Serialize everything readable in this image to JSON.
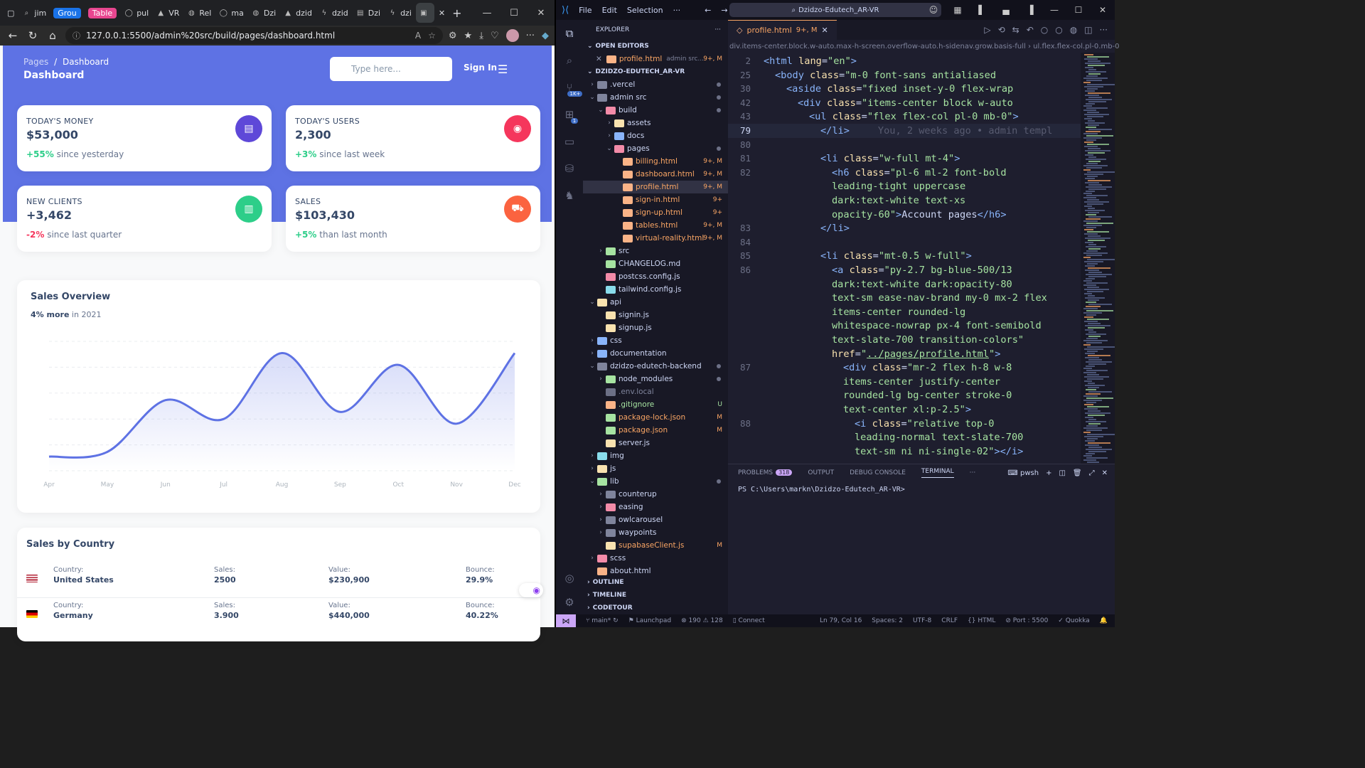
{
  "browser": {
    "tabs": [
      {
        "icon": "search",
        "label": "jim"
      },
      {
        "icon": "group",
        "label": "Grou",
        "pill_color": "#1a73e8"
      },
      {
        "icon": "group",
        "label": "Table",
        "pill_color": "#e8468f"
      },
      {
        "icon": "github",
        "label": "pul"
      },
      {
        "icon": "vercel",
        "label": "VR"
      },
      {
        "icon": "globe",
        "label": "Rel"
      },
      {
        "icon": "github",
        "label": "ma"
      },
      {
        "icon": "globe",
        "label": "Dzi"
      },
      {
        "icon": "vercel",
        "label": "dzid"
      },
      {
        "icon": "supabase",
        "label": "dzid"
      },
      {
        "icon": "doc",
        "label": "Dzi"
      },
      {
        "icon": "supabase",
        "label": "dzi"
      },
      {
        "icon": "page",
        "label": "",
        "active": true
      }
    ],
    "url": "127.0.0.1:5500/admin%20src/build/pages/dashboard.html"
  },
  "dashboard": {
    "breadcrumb_parent": "Pages",
    "breadcrumb_sep": "/",
    "breadcrumb_current": "Dashboard",
    "title": "Dashboard",
    "search_placeholder": "Type here...",
    "sign_in": "Sign In",
    "stats": [
      {
        "label": "TODAY'S MONEY",
        "value": "$53,000",
        "change": "+55%",
        "change_color": "#2dce89",
        "note": "since yesterday",
        "icon": "money-icon",
        "icon_color": "#5e48d8"
      },
      {
        "label": "TODAY'S USERS",
        "value": "2,300",
        "change": "+3%",
        "change_color": "#2dce89",
        "note": "since last week",
        "icon": "globe-icon",
        "icon_color": "#f5365c"
      },
      {
        "label": "NEW CLIENTS",
        "value": "+3,462",
        "change": "-2%",
        "change_color": "#f5365c",
        "note": "since last quarter",
        "icon": "paper-icon",
        "icon_color": "#2dce89"
      },
      {
        "label": "SALES",
        "value": "$103,430",
        "change": "+5%",
        "change_color": "#2dce89",
        "note": "than last month",
        "icon": "cart-icon",
        "icon_color": "#fb6340"
      }
    ],
    "sales_overview": {
      "title": "Sales Overview",
      "sub_bold": "4% more",
      "sub_rest": "in 2021"
    },
    "sales_by_country": {
      "title": "Sales by Country",
      "headers": {
        "country": "Country:",
        "sales": "Sales:",
        "value": "Value:",
        "bounce": "Bounce:"
      },
      "rows": [
        {
          "flag": "us-flag",
          "country": "United States",
          "sales": "2500",
          "value": "$230,900",
          "bounce": "29.9%"
        },
        {
          "flag": "de-flag",
          "country": "Germany",
          "sales": "3.900",
          "value": "$440,000",
          "bounce": "40.22%"
        }
      ]
    }
  },
  "chart_data": {
    "type": "line",
    "title": "Sales Overview",
    "categories": [
      "Apr",
      "May",
      "Jun",
      "Jul",
      "Aug",
      "Sep",
      "Oct",
      "Nov",
      "Dec"
    ],
    "series": [
      {
        "values": [
          60,
          80,
          300,
          220,
          500,
          250,
          450,
          200,
          500
        ]
      }
    ],
    "ylim": [
      0,
      550
    ],
    "grid": true,
    "line_color": "#5e72e4"
  },
  "vscode": {
    "menu": [
      "File",
      "Edit",
      "Selection",
      "···"
    ],
    "search": "Dzidzo-Edutech_AR-VR",
    "explorer_title": "EXPLORER",
    "open_editors": "OPEN EDITORS",
    "open_file": {
      "name": "profile.html",
      "path": "admin src...",
      "status": "9+, M"
    },
    "project": "DZIDZO-EDUTECH_AR-VR",
    "tree": [
      {
        "d": 0,
        "chev": "›",
        "icon": "#7f849c",
        "name": ".vercel",
        "dot": true
      },
      {
        "d": 0,
        "chev": "⌄",
        "icon": "#7f849c",
        "name": "admin src",
        "dot": true
      },
      {
        "d": 1,
        "chev": "⌄",
        "icon": "#f38ba8",
        "name": "build",
        "dot": true
      },
      {
        "d": 2,
        "chev": "›",
        "icon": "#f9e2af",
        "name": "assets"
      },
      {
        "d": 2,
        "chev": "›",
        "icon": "#89b4fa",
        "name": "docs"
      },
      {
        "d": 2,
        "chev": "⌄",
        "icon": "#f38ba8",
        "name": "pages",
        "dot": true
      },
      {
        "d": 3,
        "chev": "",
        "icon": "#fab387",
        "name": "billing.html",
        "st": "9+, M",
        "cls": "mod"
      },
      {
        "d": 3,
        "chev": "",
        "icon": "#fab387",
        "name": "dashboard.html",
        "st": "9+, M",
        "cls": "mod"
      },
      {
        "d": 3,
        "chev": "",
        "icon": "#fab387",
        "name": "profile.html",
        "st": "9+, M",
        "cls": "mod",
        "sel": true
      },
      {
        "d": 3,
        "chev": "",
        "icon": "#fab387",
        "name": "sign-in.html",
        "st": "9+",
        "cls": "mod"
      },
      {
        "d": 3,
        "chev": "",
        "icon": "#fab387",
        "name": "sign-up.html",
        "st": "9+",
        "cls": "mod"
      },
      {
        "d": 3,
        "chev": "",
        "icon": "#fab387",
        "name": "tables.html",
        "st": "9+, M",
        "cls": "mod"
      },
      {
        "d": 3,
        "chev": "",
        "icon": "#fab387",
        "name": "virtual-reality.html",
        "st": "9+, M",
        "cls": "mod"
      },
      {
        "d": 1,
        "chev": "›",
        "icon": "#a6e3a1",
        "name": "src"
      },
      {
        "d": 1,
        "chev": "",
        "icon": "#a6e3a1",
        "name": "CHANGELOG.md"
      },
      {
        "d": 1,
        "chev": "",
        "icon": "#f38ba8",
        "name": "postcss.config.js"
      },
      {
        "d": 1,
        "chev": "",
        "icon": "#89dceb",
        "name": "tailwind.config.js"
      },
      {
        "d": 0,
        "chev": "⌄",
        "icon": "#f9e2af",
        "name": "api"
      },
      {
        "d": 1,
        "chev": "",
        "icon": "#f9e2af",
        "name": "signin.js"
      },
      {
        "d": 1,
        "chev": "",
        "icon": "#f9e2af",
        "name": "signup.js"
      },
      {
        "d": 0,
        "chev": "›",
        "icon": "#89b4fa",
        "name": "css"
      },
      {
        "d": 0,
        "chev": "›",
        "icon": "#89b4fa",
        "name": "documentation"
      },
      {
        "d": 0,
        "chev": "⌄",
        "icon": "#7f849c",
        "name": "dzidzo-edutech-backend",
        "dot": true
      },
      {
        "d": 1,
        "chev": "›",
        "icon": "#a6e3a1",
        "name": "node_modules",
        "dot": true
      },
      {
        "d": 1,
        "chev": "",
        "icon": "#6c7086",
        "name": ".env.local",
        "cls": "dim"
      },
      {
        "d": 1,
        "chev": "",
        "icon": "#fab387",
        "name": ".gitignore",
        "st": "U",
        "cls": "untr"
      },
      {
        "d": 1,
        "chev": "",
        "icon": "#a6e3a1",
        "name": "package-lock.json",
        "st": "M",
        "cls": "mod"
      },
      {
        "d": 1,
        "chev": "",
        "icon": "#a6e3a1",
        "name": "package.json",
        "st": "M",
        "cls": "mod"
      },
      {
        "d": 1,
        "chev": "",
        "icon": "#f9e2af",
        "name": "server.js"
      },
      {
        "d": 0,
        "chev": "›",
        "icon": "#89dceb",
        "name": "img"
      },
      {
        "d": 0,
        "chev": "›",
        "icon": "#f9e2af",
        "name": "js"
      },
      {
        "d": 0,
        "chev": "⌄",
        "icon": "#a6e3a1",
        "name": "lib",
        "dot": true
      },
      {
        "d": 1,
        "chev": "›",
        "icon": "#7f849c",
        "name": "counterup"
      },
      {
        "d": 1,
        "chev": "›",
        "icon": "#f38ba8",
        "name": "easing"
      },
      {
        "d": 1,
        "chev": "›",
        "icon": "#7f849c",
        "name": "owlcarousel"
      },
      {
        "d": 1,
        "chev": "›",
        "icon": "#7f849c",
        "name": "waypoints"
      },
      {
        "d": 1,
        "chev": "",
        "icon": "#f9e2af",
        "name": "supabaseClient.js",
        "st": "M",
        "cls": "mod"
      },
      {
        "d": 0,
        "chev": "›",
        "icon": "#f38ba8",
        "name": "scss"
      },
      {
        "d": 0,
        "chev": "",
        "icon": "#fab387",
        "name": "about.html"
      }
    ],
    "outline": "OUTLINE",
    "timeline": "TIMELINE",
    "codetour": "CODETOUR",
    "editor_tab": {
      "name": "profile.html",
      "status": "9+, M"
    },
    "breadcrumb": "div.items-center.block.w-auto.max-h-screen.overflow-auto.h-sidenav.grow.basis-full  ›  ul.flex.flex-col.pl-0.mb-0",
    "code": [
      {
        "n": "2",
        "html": "<span class='tg'>&lt;html</span> <span class='at'>lang</span><span class='pu'>=</span><span class='sv'>\"en\"</span><span class='tg'>&gt;</span>",
        "ind": 0
      },
      {
        "n": "25",
        "html": "<span class='tg'>&lt;body</span> <span class='at'>class</span><span class='pu'>=</span><span class='sv'>\"m-0 font-sans antialiased</span>",
        "ind": 1
      },
      {
        "n": "30",
        "html": "<span class='tg'>&lt;aside</span> <span class='at'>class</span><span class='pu'>=</span><span class='sv'>\"fixed inset-y-0 flex-wrap</span>",
        "ind": 2
      },
      {
        "n": "42",
        "html": "<span class='tg'>&lt;div</span> <span class='at'>class</span><span class='pu'>=</span><span class='sv'>\"items-center block w-auto</span>",
        "ind": 3
      },
      {
        "n": "43",
        "html": "<span class='tg'>&lt;ul</span> <span class='at'>class</span><span class='pu'>=</span><span class='sv'>\"flex flex-col pl-0 mb-0\"</span><span class='tg'>&gt;</span>",
        "ind": 4
      },
      {
        "n": "79",
        "html": "<span class='tg'>&lt;/li&gt;</span><span class='blame'>You, 2 weeks ago • admin templ</span>",
        "ind": 5,
        "cur": true
      },
      {
        "n": "80",
        "html": "",
        "ind": 5
      },
      {
        "n": "81",
        "html": "<span class='tg'>&lt;li</span> <span class='at'>class</span><span class='pu'>=</span><span class='sv'>\"w-full mt-4\"</span><span class='tg'>&gt;</span>",
        "ind": 5
      },
      {
        "n": "82",
        "html": "<span class='tg'>&lt;h6</span> <span class='at'>class</span><span class='pu'>=</span><span class='sv'>\"pl-6 ml-2 font-bold</span>",
        "ind": 6
      },
      {
        "n": "",
        "html": "<span class='sv'>leading-tight uppercase</span>",
        "ind": 6
      },
      {
        "n": "",
        "html": "<span class='sv'>dark:text-white text-xs</span>",
        "ind": 6
      },
      {
        "n": "",
        "html": "<span class='sv'>opacity-60\"</span><span class='tg'>&gt;</span><span class='txt'>Account pages</span><span class='tg'>&lt;/h6&gt;</span>",
        "ind": 6
      },
      {
        "n": "83",
        "html": "<span class='tg'>&lt;/li&gt;</span>",
        "ind": 5
      },
      {
        "n": "84",
        "html": "",
        "ind": 5
      },
      {
        "n": "85",
        "html": "<span class='tg'>&lt;li</span> <span class='at'>class</span><span class='pu'>=</span><span class='sv'>\"mt-0.5 w-full\"</span><span class='tg'>&gt;</span>",
        "ind": 5
      },
      {
        "n": "86",
        "html": "<span class='tg'>&lt;a</span> <span class='at'>class</span><span class='pu'>=</span><span class='sv'>\"py-2.7 bg-blue-500/13</span>",
        "ind": 6
      },
      {
        "n": "",
        "html": "<span class='sv'>dark:text-white dark:opacity-80</span>",
        "ind": 6
      },
      {
        "n": "",
        "html": "<span class='sv'>text-sm ease-nav-brand my-0 mx-2 flex</span>",
        "ind": 6
      },
      {
        "n": "",
        "html": "<span class='sv'>items-center rounded-lg</span>",
        "ind": 6
      },
      {
        "n": "",
        "html": "<span class='sv'>whitespace-nowrap px-4 font-semibold</span>",
        "ind": 6
      },
      {
        "n": "",
        "html": "<span class='sv'>text-slate-700 transition-colors\"</span>",
        "ind": 6
      },
      {
        "n": "",
        "html": "<span class='at'>href</span><span class='pu'>=</span><span class='sv'>\"<u>../pages/profile.html</u>\"</span><span class='tg'>&gt;</span>",
        "ind": 6
      },
      {
        "n": "87",
        "html": "<span class='tg'>&lt;div</span> <span class='at'>class</span><span class='pu'>=</span><span class='sv'>\"mr-2 flex h-8 w-8</span>",
        "ind": 7
      },
      {
        "n": "",
        "html": "<span class='sv'>items-center justify-center</span>",
        "ind": 7
      },
      {
        "n": "",
        "html": "<span class='sv'>rounded-lg bg-center stroke-0</span>",
        "ind": 7
      },
      {
        "n": "",
        "html": "<span class='sv'>text-center xl:p-2.5\"</span><span class='tg'>&gt;</span>",
        "ind": 7
      },
      {
        "n": "88",
        "html": "<span class='tg'>&lt;i</span> <span class='at'>class</span><span class='pu'>=</span><span class='sv'>\"relative top-0</span>",
        "ind": 8
      },
      {
        "n": "",
        "html": "<span class='sv'>leading-normal text-slate-700</span>",
        "ind": 8
      },
      {
        "n": "",
        "html": "<span class='sv'>text-sm ni ni-single-02\"</span><span class='tg'>&gt;&lt;/i&gt;</span>",
        "ind": 8
      }
    ],
    "panel_tabs": [
      "PROBLEMS",
      "OUTPUT",
      "DEBUG CONSOLE",
      "TERMINAL"
    ],
    "problems_count": "318",
    "shell": "pwsh",
    "terminal_prompt": "PS C:\\Users\\markn\\Dzidzo-Edutech_AR-VR>",
    "status": {
      "branch": "main*",
      "launchpad": "Launchpad",
      "errors": "190",
      "warnings": "128",
      "connect": "Connect",
      "position": "Ln 79, Col 16",
      "spaces": "Spaces: 2",
      "encoding": "UTF-8",
      "eol": "CRLF",
      "lang": "HTML",
      "port": "Port : 5500",
      "quokka": "Quokka"
    },
    "activity_badge_scm": "1K+",
    "activity_badge_ext": "1"
  }
}
